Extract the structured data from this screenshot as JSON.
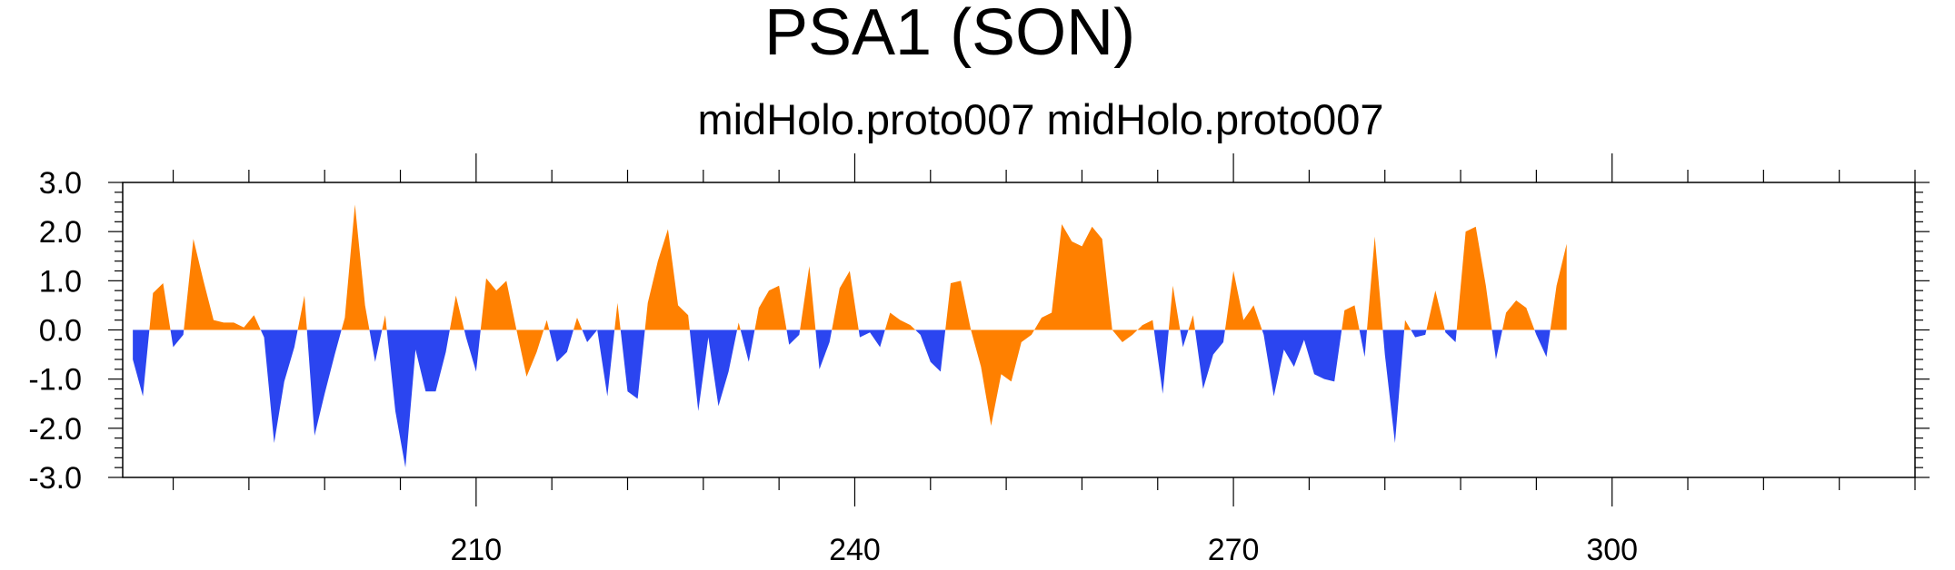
{
  "chart_data": {
    "type": "area",
    "title": "PSA1 (SON)",
    "subtitle": "midHolo.proto007  midHolo.proto007",
    "xlabel": "",
    "ylabel": "",
    "xlim": [
      182,
      324
    ],
    "ylim": [
      -3.0,
      3.0
    ],
    "x_ticks": [
      210,
      240,
      270,
      300
    ],
    "x_tick_labels": [
      "210",
      "240",
      "270",
      "300"
    ],
    "y_ticks": [
      -3.0,
      -2.0,
      -1.0,
      0.0,
      1.0,
      2.0,
      3.0
    ],
    "y_tick_labels": [
      "-3.0",
      "-2.0",
      "-1.0",
      "0.0",
      "1.0",
      "2.0",
      "3.0"
    ],
    "positive_color": "#ff8000",
    "negative_color": "#2b45f0",
    "x_start": 182.8,
    "x_step": 0.8,
    "values": [
      -0.6,
      -1.35,
      0.75,
      0.95,
      -0.35,
      -0.1,
      1.85,
      1.0,
      0.2,
      0.15,
      0.15,
      0.05,
      0.3,
      -0.15,
      -2.3,
      -1.05,
      -0.35,
      0.7,
      -2.15,
      -1.3,
      -0.5,
      0.25,
      2.55,
      0.5,
      -0.65,
      0.3,
      -1.65,
      -2.8,
      -0.4,
      -1.25,
      -1.25,
      -0.45,
      0.7,
      -0.15,
      -0.85,
      1.05,
      0.8,
      1.0,
      0.0,
      -0.95,
      -0.45,
      0.2,
      -0.65,
      -0.45,
      0.25,
      -0.25,
      0.0,
      -1.35,
      0.55,
      -1.25,
      -1.4,
      0.55,
      1.4,
      2.05,
      0.5,
      0.3,
      -1.65,
      -0.15,
      -1.55,
      -0.85,
      0.15,
      -0.65,
      0.45,
      0.8,
      0.9,
      -0.3,
      -0.1,
      1.3,
      -0.8,
      -0.25,
      0.85,
      1.2,
      -0.15,
      -0.05,
      -0.35,
      0.35,
      0.2,
      0.1,
      -0.1,
      -0.65,
      -0.85,
      0.95,
      1.0,
      0.0,
      -0.75,
      -1.95,
      -0.9,
      -1.05,
      -0.25,
      -0.1,
      0.25,
      0.35,
      2.15,
      1.8,
      1.7,
      2.1,
      1.85,
      0.0,
      -0.25,
      -0.1,
      0.1,
      0.2,
      -1.3,
      0.9,
      -0.35,
      0.3,
      -1.2,
      -0.5,
      -0.25,
      1.2,
      0.2,
      0.5,
      -0.1,
      -1.35,
      -0.4,
      -0.75,
      -0.2,
      -0.9,
      -1.0,
      -1.05,
      0.4,
      0.5,
      -0.55,
      1.9,
      -0.5,
      -2.3,
      0.2,
      -0.15,
      -0.1,
      0.8,
      -0.05,
      -0.25,
      2.0,
      2.1,
      0.9,
      -0.6,
      0.35,
      0.6,
      0.45,
      -0.1,
      -0.55,
      0.9,
      1.75
    ]
  }
}
